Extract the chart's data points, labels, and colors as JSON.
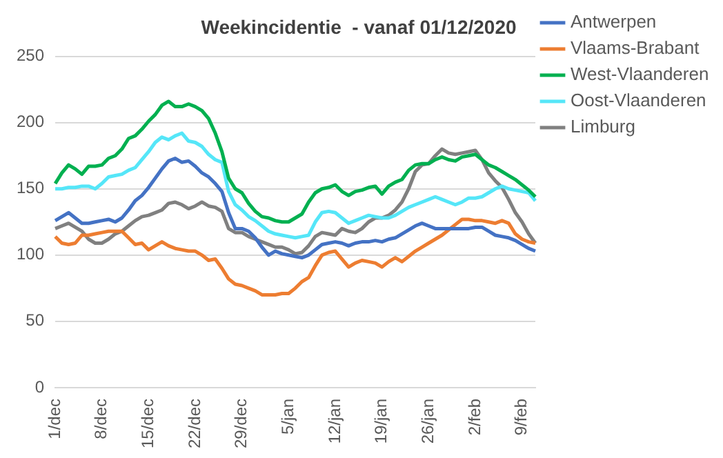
{
  "chart_data": {
    "type": "line",
    "title": "Weekincidentie  - vanaf 01/12/2020",
    "categories": [
      "1/dec",
      null,
      null,
      null,
      null,
      null,
      null,
      "8/dec",
      null,
      null,
      null,
      null,
      null,
      null,
      "15/dec",
      null,
      null,
      null,
      null,
      null,
      null,
      "22/dec",
      null,
      null,
      null,
      null,
      null,
      null,
      "29/dec",
      null,
      null,
      null,
      null,
      null,
      null,
      "5/jan",
      null,
      null,
      null,
      null,
      null,
      null,
      "12/jan",
      null,
      null,
      null,
      null,
      null,
      null,
      "19/jan",
      null,
      null,
      null,
      null,
      null,
      null,
      "26/jan",
      null,
      null,
      null,
      null,
      null,
      null,
      "2/feb",
      null,
      null,
      null,
      null,
      null,
      null,
      "9/feb",
      null,
      null
    ],
    "series": [
      {
        "name": "Antwerpen",
        "color": "#4472c4",
        "values": [
          126,
          129,
          132,
          128,
          124,
          124,
          125,
          126,
          127,
          125,
          128,
          134,
          141,
          145,
          151,
          158,
          165,
          171,
          173,
          170,
          171,
          167,
          162,
          159,
          154,
          148,
          132,
          120,
          120,
          118,
          113,
          106,
          100,
          103,
          101,
          100,
          99,
          98,
          100,
          104,
          108,
          109,
          110,
          109,
          107,
          109,
          110,
          110,
          111,
          110,
          112,
          113,
          116,
          119,
          122,
          124,
          122,
          120,
          120,
          120,
          120,
          120,
          120,
          121,
          121,
          118,
          115,
          114,
          113,
          111,
          108,
          105,
          103
        ]
      },
      {
        "name": "Vlaams-Brabant",
        "color": "#ed7d31",
        "values": [
          114,
          109,
          108,
          109,
          115,
          115,
          116,
          117,
          118,
          118,
          118,
          113,
          108,
          109,
          104,
          107,
          110,
          107,
          105,
          104,
          103,
          103,
          100,
          96,
          97,
          90,
          82,
          78,
          77,
          75,
          73,
          70,
          70,
          70,
          71,
          71,
          75,
          80,
          83,
          92,
          100,
          102,
          103,
          97,
          91,
          94,
          96,
          95,
          94,
          91,
          95,
          98,
          95,
          99,
          103,
          106,
          109,
          112,
          115,
          119,
          123,
          127,
          127,
          126,
          126,
          125,
          124,
          126,
          124,
          116,
          112,
          110,
          109
        ]
      },
      {
        "name": "West-Vlaanderen",
        "color": "#00b050",
        "values": [
          154,
          162,
          168,
          165,
          161,
          167,
          167,
          168,
          173,
          175,
          180,
          188,
          190,
          195,
          201,
          206,
          213,
          216,
          212,
          212,
          214,
          212,
          209,
          203,
          192,
          178,
          158,
          150,
          147,
          139,
          133,
          129,
          128,
          126,
          125,
          125,
          128,
          131,
          140,
          147,
          150,
          151,
          153,
          148,
          145,
          148,
          149,
          151,
          152,
          146,
          152,
          155,
          157,
          164,
          168,
          169,
          169,
          172,
          174,
          172,
          171,
          174,
          175,
          176,
          172,
          168,
          166,
          163,
          160,
          157,
          153,
          149,
          144
        ]
      },
      {
        "name": "Oost-Vlaanderen",
        "color": "#55e6f8",
        "values": [
          150,
          150,
          151,
          151,
          152,
          152,
          150,
          154,
          159,
          160,
          161,
          164,
          166,
          172,
          178,
          185,
          189,
          187,
          190,
          192,
          186,
          185,
          182,
          176,
          172,
          170,
          148,
          138,
          134,
          129,
          126,
          122,
          118,
          116,
          115,
          114,
          113,
          114,
          115,
          125,
          132,
          133,
          132,
          128,
          124,
          126,
          128,
          130,
          129,
          128,
          128,
          130,
          133,
          136,
          138,
          140,
          142,
          144,
          142,
          140,
          138,
          140,
          143,
          143,
          144,
          147,
          150,
          152,
          150,
          149,
          148,
          147,
          141
        ]
      },
      {
        "name": "Limburg",
        "color": "#808080",
        "values": [
          120,
          122,
          124,
          121,
          118,
          112,
          109,
          109,
          112,
          116,
          118,
          122,
          126,
          129,
          130,
          132,
          134,
          139,
          140,
          138,
          135,
          137,
          140,
          137,
          136,
          133,
          120,
          117,
          117,
          114,
          112,
          110,
          108,
          106,
          106,
          104,
          101,
          102,
          107,
          114,
          117,
          116,
          115,
          120,
          118,
          117,
          120,
          125,
          128,
          128,
          130,
          134,
          140,
          150,
          163,
          168,
          169,
          175,
          180,
          177,
          176,
          177,
          178,
          179,
          172,
          162,
          156,
          151,
          142,
          132,
          125,
          116,
          109
        ]
      }
    ],
    "ylim": [
      0,
      250
    ],
    "yticks": [
      0,
      50,
      100,
      150,
      200,
      250
    ],
    "grid": "y",
    "legend": "right",
    "marker": "none",
    "line_style": "solid"
  }
}
